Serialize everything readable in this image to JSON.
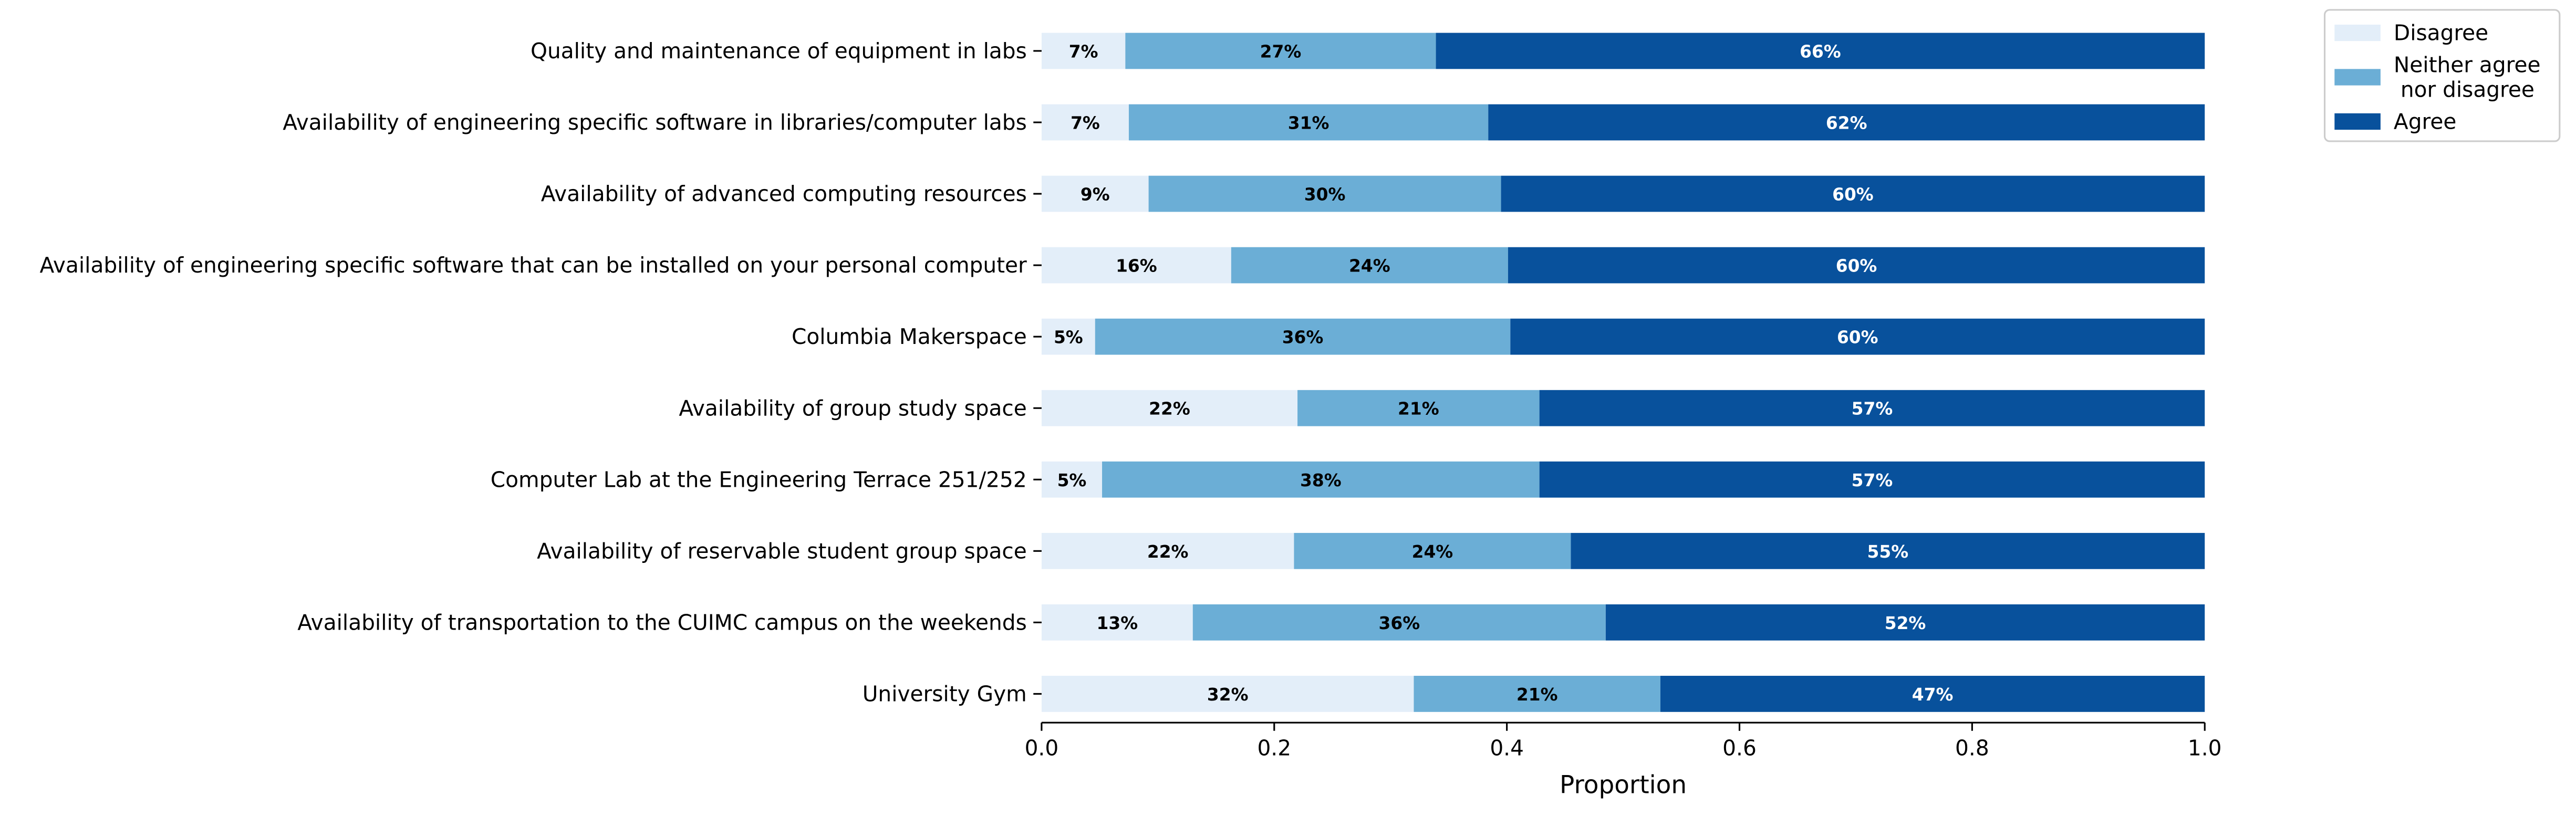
{
  "chart_data": {
    "type": "bar",
    "orientation": "horizontal",
    "stacked": true,
    "categories": [
      "Quality and maintenance of equipment in labs",
      "Availability of engineering specific software in libraries/computer labs",
      "Availability of advanced computing resources",
      "Availability of engineering specific software that can be installed on your personal computer",
      "Columbia Makerspace",
      "Availability of group study space",
      "Computer Lab at the Engineering Terrace 251/252",
      "Availability of reservable student group space",
      "Availability of transportation to the CUIMC campus on the weekends",
      "University Gym"
    ],
    "series": [
      {
        "name": "Disagree",
        "color": "#e3eef9",
        "values": [
          0.072,
          0.075,
          0.092,
          0.163,
          0.046,
          0.22,
          0.052,
          0.217,
          0.13,
          0.32
        ],
        "labels": [
          "7%",
          "7%",
          "9%",
          "16%",
          "5%",
          "22%",
          "5%",
          "22%",
          "13%",
          "32%"
        ]
      },
      {
        "name": "Neither agree\n nor disagree",
        "color": "#6baed6",
        "values": [
          0.267,
          0.309,
          0.303,
          0.238,
          0.357,
          0.208,
          0.376,
          0.238,
          0.355,
          0.212
        ],
        "labels": [
          "27%",
          "31%",
          "30%",
          "24%",
          "36%",
          "21%",
          "38%",
          "24%",
          "36%",
          "21%"
        ]
      },
      {
        "name": "Agree",
        "color": "#08519c",
        "values": [
          0.661,
          0.616,
          0.605,
          0.599,
          0.597,
          0.572,
          0.572,
          0.545,
          0.515,
          0.468
        ],
        "labels": [
          "66%",
          "62%",
          "60%",
          "60%",
          "60%",
          "57%",
          "57%",
          "55%",
          "52%",
          "47%"
        ]
      }
    ],
    "xlabel": "Proportion",
    "xlim": [
      0.0,
      1.0
    ],
    "xticks": [
      "0.0",
      "0.2",
      "0.4",
      "0.6",
      "0.8",
      "1.0"
    ],
    "grid": false,
    "legend_position": "top-right-outside"
  }
}
